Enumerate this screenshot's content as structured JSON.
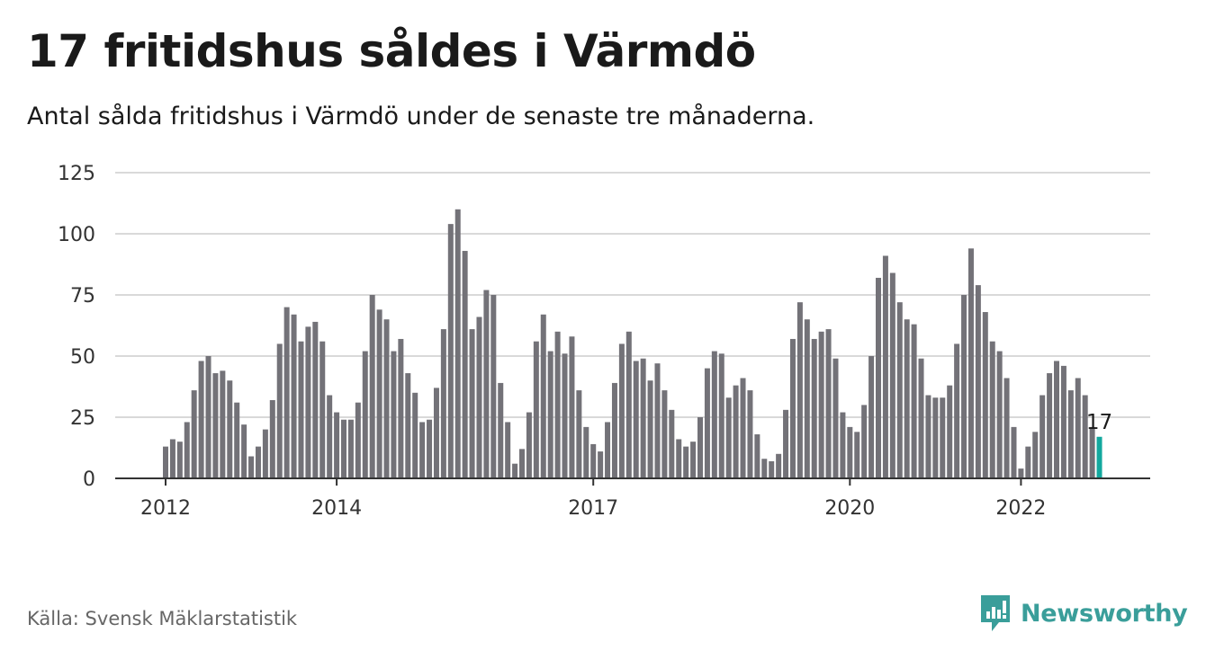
{
  "title": "17 fritidshus såldes i Värmdö",
  "subtitle": "Antal sålda fritidshus i Värmdö under de senaste tre månaderna.",
  "source": "Källa: Svensk Mäklarstatistik",
  "brand": {
    "name": "Newsworthy",
    "logo_icon": "chart-bubble-icon",
    "color": "#3a9e9a"
  },
  "colors": {
    "bar": "#737278",
    "highlight": "#13a89e",
    "grid": "#d9d9d9",
    "axis": "#333333"
  },
  "chart_data": {
    "type": "bar",
    "start": "2012-01",
    "x_ticks": [
      "2012",
      "2014",
      "2017",
      "2020",
      "2022"
    ],
    "y_ticks": [
      0,
      25,
      50,
      75,
      100,
      125
    ],
    "ylim": [
      0,
      125
    ],
    "grid": true,
    "values": [
      13,
      16,
      15,
      23,
      36,
      48,
      50,
      43,
      44,
      40,
      31,
      22,
      9,
      13,
      20,
      32,
      55,
      70,
      67,
      56,
      62,
      64,
      56,
      34,
      27,
      24,
      24,
      31,
      52,
      75,
      69,
      65,
      52,
      57,
      43,
      35,
      23,
      24,
      37,
      61,
      104,
      110,
      93,
      61,
      66,
      77,
      75,
      39,
      23,
      6,
      12,
      27,
      56,
      67,
      52,
      60,
      51,
      58,
      36,
      21,
      14,
      11,
      23,
      39,
      55,
      60,
      48,
      49,
      40,
      47,
      36,
      28,
      16,
      13,
      15,
      25,
      45,
      52,
      51,
      33,
      38,
      41,
      36,
      18,
      8,
      7,
      10,
      28,
      57,
      72,
      65,
      57,
      60,
      61,
      49,
      27,
      21,
      19,
      30,
      50,
      82,
      91,
      84,
      72,
      65,
      63,
      49,
      34,
      33,
      33,
      38,
      55,
      75,
      94,
      79,
      68,
      56,
      52,
      41,
      21,
      4,
      13,
      19,
      34,
      43,
      48,
      46,
      36,
      41,
      34,
      21,
      17
    ],
    "highlight_label": "17"
  }
}
